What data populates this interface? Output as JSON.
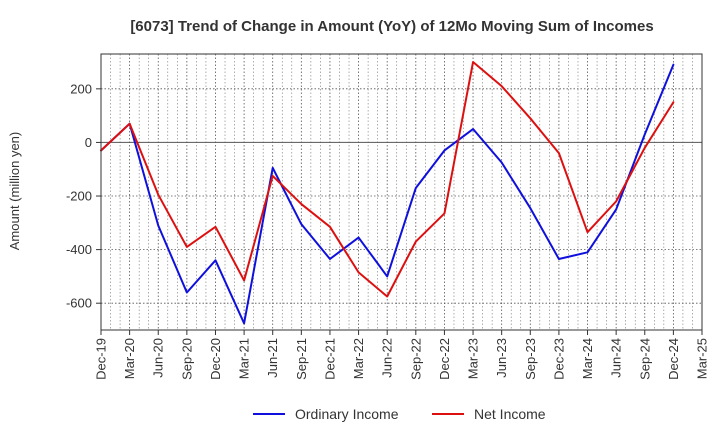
{
  "chart_data": {
    "type": "line",
    "title": "[6073]  Trend of Change in Amount (YoY) of 12Mo Moving Sum of Incomes",
    "ylabel": "Amount (million yen)",
    "xlabel": "",
    "ylim": [
      -700,
      330
    ],
    "yticks": [
      200,
      0,
      -200,
      -400,
      -600
    ],
    "grid": true,
    "legend_position": "bottom",
    "x_tick_labels": [
      "Dec-19",
      "Mar-20",
      "Jun-20",
      "Sep-20",
      "Dec-20",
      "Mar-21",
      "Jun-21",
      "Sep-21",
      "Dec-21",
      "Mar-22",
      "Jun-22",
      "Sep-22",
      "Dec-22",
      "Mar-23",
      "Jun-23",
      "Sep-23",
      "Dec-23",
      "Mar-24",
      "Jun-24",
      "Sep-24",
      "Dec-24",
      "Mar-25"
    ],
    "x": [
      "Dec-19",
      "Mar-20",
      "Jun-20",
      "Sep-20",
      "Dec-20",
      "Mar-21",
      "Jun-21",
      "Sep-21",
      "Dec-21",
      "Mar-22",
      "Jun-22",
      "Sep-22",
      "Dec-22",
      "Mar-23",
      "Jun-23",
      "Sep-23",
      "Dec-23",
      "Mar-24",
      "Jun-24",
      "Sep-24",
      "Dec-24"
    ],
    "series": [
      {
        "name": "Ordinary Income",
        "color": "#1010dd",
        "values": [
          -30,
          70,
          -310,
          -560,
          -440,
          -675,
          -95,
          -305,
          -435,
          -355,
          -500,
          -170,
          -30,
          50,
          -75,
          -245,
          -435,
          -410,
          -250,
          30,
          290
        ]
      },
      {
        "name": "Net Income",
        "color": "#dd1010",
        "values": [
          -30,
          70,
          -195,
          -390,
          -315,
          -515,
          -125,
          -230,
          -315,
          -485,
          -575,
          -370,
          -265,
          300,
          210,
          90,
          -40,
          -335,
          -220,
          -20,
          150
        ]
      }
    ]
  }
}
